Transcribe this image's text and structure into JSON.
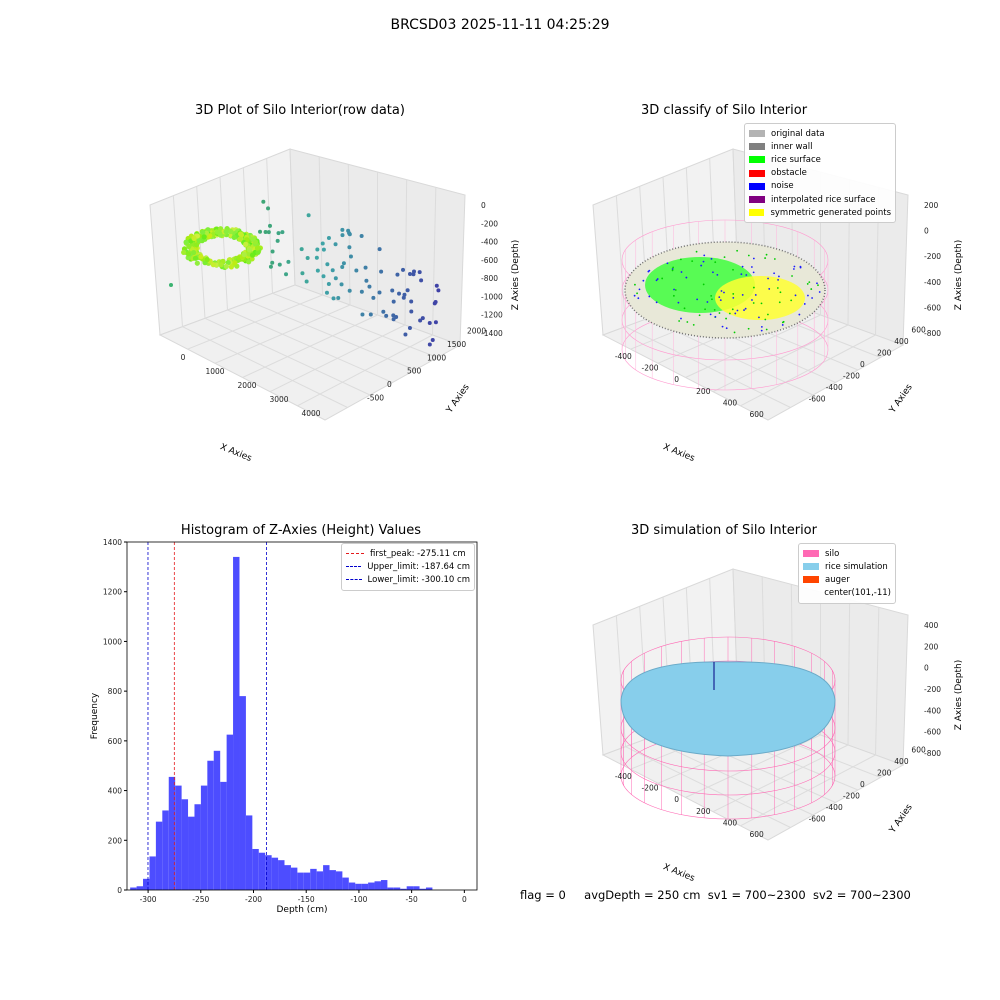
{
  "suptitle": "BRCSD03 2025-11-11 04:25:29",
  "footer": {
    "flag": "flag = 0",
    "avg_depth": "avgDepth = 250 cm",
    "sv1": "sv1 = 700~2300",
    "sv2": "sv2 = 700~2300"
  },
  "colors": {
    "original_data": "#b3b3b3",
    "inner_wall": "#808080",
    "rice_surface": "#00ff00",
    "obstacle": "#ff0000",
    "noise": "#0000ff",
    "interpolated": "#800080",
    "symmetric": "#ffff00",
    "silo": "#ff69b4",
    "rice_sim": "#87ceeb",
    "auger": "#ff4500",
    "hist_bar": "#4d4dff"
  },
  "chart_data": [
    {
      "type": "scatter3d",
      "title": "3D Plot of Silo Interior(row data)",
      "xlabel": "X Axies",
      "ylabel": "Y Axies",
      "zlabel": "Z Axies (Depth)",
      "xticks": [
        "0",
        "1000",
        "2000",
        "3000",
        "4000"
      ],
      "yticks": [
        "-500",
        "0",
        "500",
        "1000",
        "1500",
        "2000"
      ],
      "zticks": [
        "0",
        "-200",
        "-400",
        "-600",
        "-800",
        "-1000",
        "-1200",
        "-1400"
      ]
    },
    {
      "type": "scatter3d",
      "title": "3D classify of Silo Interior",
      "xlabel": "X Axies",
      "ylabel": "Y Axies",
      "zlabel": "Z Axies (Depth)",
      "xticks": [
        "-400",
        "-200",
        "0",
        "200",
        "400",
        "600"
      ],
      "yticks": [
        "-600",
        "-400",
        "-200",
        "0",
        "200",
        "400",
        "600"
      ],
      "zticks": [
        "200",
        "0",
        "-200",
        "-400",
        "-600",
        "-800"
      ],
      "legend": [
        "original data",
        "inner wall",
        "rice surface",
        "obstacle",
        "noise",
        "interpolated rice surface",
        "symmetric generated points"
      ]
    },
    {
      "type": "bar",
      "title": "Histogram of Z-Axies (Height) Values",
      "xlabel": "Depth (cm)",
      "ylabel": "Frequency",
      "xlim": [
        -320,
        12
      ],
      "ylim": [
        0,
        1400
      ],
      "xticks": [
        "-300",
        "-250",
        "-200",
        "-150",
        "-100",
        "-50",
        "0"
      ],
      "yticks": [
        "0",
        "200",
        "400",
        "600",
        "800",
        "1000",
        "1200",
        "1400"
      ],
      "bin_start": -317,
      "bin_width": 6.1,
      "values": [
        10,
        15,
        45,
        135,
        275,
        320,
        455,
        420,
        365,
        295,
        345,
        420,
        520,
        560,
        435,
        625,
        1340,
        780,
        300,
        165,
        150,
        140,
        130,
        120,
        100,
        90,
        70,
        70,
        85,
        75,
        100,
        80,
        75,
        50,
        30,
        25,
        25,
        30,
        35,
        40,
        10,
        10,
        5,
        15,
        15,
        5,
        10
      ],
      "vlines": [
        {
          "label": "first_peak: -275.11 cm",
          "x": -275.11,
          "color": "red"
        },
        {
          "label": "Upper_limit: -187.64 cm",
          "x": -187.64,
          "color": "blue"
        },
        {
          "label": "Lower_limit: -300.10 cm",
          "x": -300.1,
          "color": "blue"
        }
      ]
    },
    {
      "type": "surface3d",
      "title": "3D simulation of Silo Interior",
      "xlabel": "X Axies",
      "ylabel": "Y Axies",
      "zlabel": "Z Axies (Depth)",
      "xticks": [
        "-400",
        "-200",
        "0",
        "200",
        "400",
        "600"
      ],
      "yticks": [
        "-600",
        "-400",
        "-200",
        "0",
        "200",
        "400",
        "600"
      ],
      "zticks": [
        "400",
        "200",
        "0",
        "-200",
        "-400",
        "-600",
        "-800"
      ],
      "legend": [
        "silo",
        "rice simulation",
        "auger",
        "center(101,-11)"
      ]
    }
  ]
}
